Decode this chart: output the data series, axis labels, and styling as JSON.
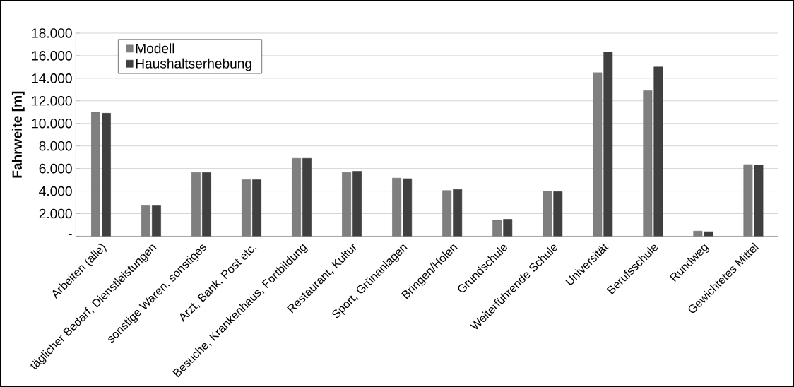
{
  "chart_data": {
    "type": "bar",
    "ylabel": "Fahrweite [m]",
    "categories": [
      "Arbeiten (alle)",
      "täglicher Bedarf, Dienstleistungen",
      "sonstige Waren, sonstiges",
      "Arzt, Bank, Post etc.",
      "Besuche, Krankenhaus, Fortbildung",
      "Restaurant, Kultur",
      "Sport, Grünanlagen",
      "Bringen/Holen",
      "Grundschule",
      "Weiterführende Schule",
      "Universität",
      "Berufsschule",
      "Rundweg",
      "Gewichtetes Mittel"
    ],
    "series": [
      {
        "name": "Modell",
        "color": "#7f7f7f",
        "values": [
          11000,
          2750,
          5650,
          5000,
          6900,
          5650,
          5150,
          4050,
          1400,
          4000,
          14500,
          12900,
          450,
          6350
        ]
      },
      {
        "name": "Haushaltserhebung",
        "color": "#404040",
        "values": [
          10900,
          2750,
          5650,
          5000,
          6900,
          5750,
          5100,
          4150,
          1500,
          3950,
          16300,
          15000,
          400,
          6300
        ]
      }
    ],
    "ylim": [
      0,
      18000
    ],
    "yticks": [
      {
        "value": 0,
        "label": "-"
      },
      {
        "value": 2000,
        "label": "2.000"
      },
      {
        "value": 4000,
        "label": "4.000"
      },
      {
        "value": 6000,
        "label": "6.000"
      },
      {
        "value": 8000,
        "label": "8.000"
      },
      {
        "value": 10000,
        "label": "10.000"
      },
      {
        "value": 12000,
        "label": "12.000"
      },
      {
        "value": 14000,
        "label": "14.000"
      },
      {
        "value": 16000,
        "label": "16.000"
      },
      {
        "value": 18000,
        "label": "18.000"
      }
    ],
    "grid": "y",
    "legend": "top left"
  }
}
